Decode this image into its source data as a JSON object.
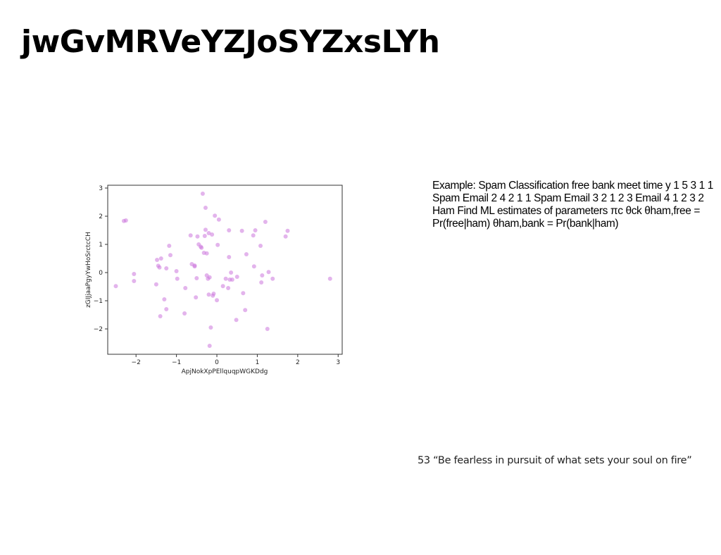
{
  "title": "jwGvMRVeYZJoSYZxsLYh",
  "chart_data": {
    "type": "scatter",
    "xlabel": "ApjNokXpPEllquqpWGKDdg",
    "ylabel": "zGIJjaaPgyYwHoSrctcCH",
    "xlim": [
      -2.7,
      3.1
    ],
    "ylim": [
      -2.9,
      3.1
    ],
    "x_ticks": [
      -2,
      -1,
      0,
      1,
      2,
      3
    ],
    "y_ticks": [
      -2,
      -1,
      0,
      1,
      2,
      3
    ],
    "tick_labels_x": [
      "−2",
      "−1",
      "0",
      "1",
      "2",
      "3"
    ],
    "tick_labels_y": [
      "−2",
      "−1",
      "0",
      "1",
      "2",
      "3"
    ],
    "marker_color": "#cc77dd",
    "grid": false,
    "points": [
      [
        -2.3,
        1.83
      ],
      [
        -2.25,
        1.85
      ],
      [
        -2.5,
        -0.48
      ],
      [
        -2.05,
        -0.05
      ],
      [
        -2.05,
        -0.3
      ],
      [
        -1.5,
        -0.42
      ],
      [
        -1.48,
        0.45
      ],
      [
        -1.45,
        0.24
      ],
      [
        -1.42,
        0.18
      ],
      [
        -1.38,
        0.5
      ],
      [
        -1.4,
        -1.55
      ],
      [
        -1.3,
        -0.95
      ],
      [
        -1.25,
        -1.3
      ],
      [
        -1.25,
        0.15
      ],
      [
        -1.18,
        0.95
      ],
      [
        -1.15,
        0.62
      ],
      [
        -1.0,
        0.05
      ],
      [
        -0.98,
        -0.22
      ],
      [
        -0.8,
        -1.45
      ],
      [
        -0.78,
        -0.55
      ],
      [
        -0.65,
        1.32
      ],
      [
        -0.62,
        0.3
      ],
      [
        -0.55,
        0.22
      ],
      [
        -0.55,
        0.25
      ],
      [
        -0.52,
        -0.88
      ],
      [
        -0.5,
        -0.2
      ],
      [
        -0.48,
        1.28
      ],
      [
        -0.45,
        1.0
      ],
      [
        -0.4,
        0.92
      ],
      [
        -0.38,
        0.88
      ],
      [
        -0.35,
        2.8
      ],
      [
        -0.32,
        0.7
      ],
      [
        -0.3,
        1.3
      ],
      [
        -0.28,
        2.3
      ],
      [
        -0.28,
        1.52
      ],
      [
        -0.25,
        0.68
      ],
      [
        -0.25,
        -0.1
      ],
      [
        -0.22,
        -0.22
      ],
      [
        -0.2,
        1.4
      ],
      [
        -0.2,
        -0.78
      ],
      [
        -0.18,
        -0.17
      ],
      [
        -0.18,
        -2.6
      ],
      [
        -0.15,
        -1.95
      ],
      [
        -0.12,
        1.35
      ],
      [
        -0.1,
        -0.82
      ],
      [
        -0.08,
        -0.75
      ],
      [
        -0.05,
        2.02
      ],
      [
        0.0,
        -0.98
      ],
      [
        0.02,
        0.98
      ],
      [
        0.05,
        1.88
      ],
      [
        0.15,
        -0.48
      ],
      [
        0.22,
        -0.22
      ],
      [
        0.28,
        -0.55
      ],
      [
        0.3,
        1.5
      ],
      [
        0.3,
        0.55
      ],
      [
        0.32,
        -0.25
      ],
      [
        0.35,
        0.0
      ],
      [
        0.38,
        -0.25
      ],
      [
        0.48,
        -1.68
      ],
      [
        0.5,
        -0.15
      ],
      [
        0.62,
        1.48
      ],
      [
        0.65,
        -0.73
      ],
      [
        0.7,
        -1.33
      ],
      [
        0.73,
        0.65
      ],
      [
        0.9,
        1.32
      ],
      [
        0.92,
        0.22
      ],
      [
        0.95,
        1.5
      ],
      [
        1.08,
        0.95
      ],
      [
        1.1,
        -0.35
      ],
      [
        1.12,
        -0.1
      ],
      [
        1.2,
        1.8
      ],
      [
        1.25,
        -2.0
      ],
      [
        1.28,
        0.02
      ],
      [
        1.38,
        -0.22
      ],
      [
        1.7,
        1.28
      ],
      [
        1.75,
        1.48
      ],
      [
        2.8,
        -0.22
      ]
    ]
  },
  "body": {
    "text": "Example: Spam Classification free bank meet time y 1 5 3 1 1 Spam Email 2 4 2 1 1 Spam Email 3 2 1 2 3 Email 4 1 2 3 2 Ham Find ML estimates of parameters πc θck θham,free = Pr(free|ham) θham,bank = Pr(bank|ham)"
  },
  "quote": {
    "text": "53 “Be fearless in pursuit of what sets your soul on fire”"
  }
}
